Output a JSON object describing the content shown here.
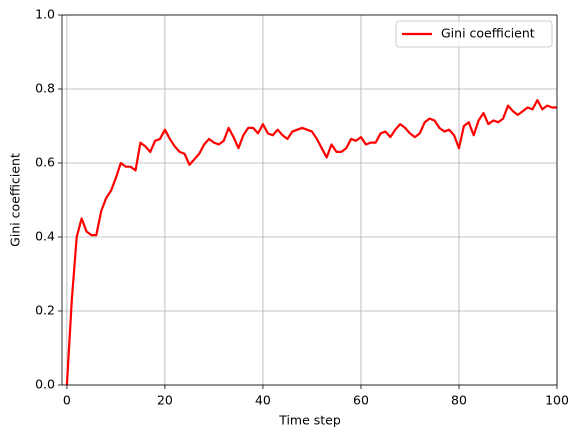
{
  "chart_data": {
    "type": "line",
    "xlabel": "Time step",
    "ylabel": "Gini coefficient",
    "x": [
      0,
      1,
      2,
      3,
      4,
      5,
      6,
      7,
      8,
      9,
      10,
      11,
      12,
      13,
      14,
      15,
      16,
      17,
      18,
      19,
      20,
      21,
      22,
      23,
      24,
      25,
      26,
      27,
      28,
      29,
      30,
      31,
      32,
      33,
      34,
      35,
      36,
      37,
      38,
      39,
      40,
      41,
      42,
      43,
      44,
      45,
      46,
      47,
      48,
      49,
      50,
      51,
      52,
      53,
      54,
      55,
      56,
      57,
      58,
      59,
      60,
      61,
      62,
      63,
      64,
      65,
      66,
      67,
      68,
      69,
      70,
      71,
      72,
      73,
      74,
      75,
      76,
      77,
      78,
      79,
      80,
      81,
      82,
      83,
      84,
      85,
      86,
      87,
      88,
      89,
      90,
      91,
      92,
      93,
      94,
      95,
      96,
      97,
      98,
      99,
      100
    ],
    "series": [
      {
        "name": "Gini coefficient",
        "color": "#ff0000",
        "values": [
          0.0,
          0.23,
          0.4,
          0.45,
          0.415,
          0.405,
          0.405,
          0.47,
          0.505,
          0.525,
          0.56,
          0.6,
          0.59,
          0.59,
          0.58,
          0.655,
          0.645,
          0.63,
          0.66,
          0.665,
          0.69,
          0.665,
          0.645,
          0.63,
          0.625,
          0.595,
          0.61,
          0.625,
          0.65,
          0.665,
          0.655,
          0.65,
          0.66,
          0.695,
          0.67,
          0.64,
          0.675,
          0.695,
          0.695,
          0.68,
          0.705,
          0.68,
          0.675,
          0.69,
          0.675,
          0.665,
          0.685,
          0.69,
          0.695,
          0.69,
          0.685,
          0.665,
          0.64,
          0.615,
          0.65,
          0.63,
          0.63,
          0.64,
          0.665,
          0.66,
          0.67,
          0.65,
          0.655,
          0.655,
          0.68,
          0.685,
          0.67,
          0.69,
          0.705,
          0.695,
          0.68,
          0.67,
          0.68,
          0.71,
          0.72,
          0.715,
          0.695,
          0.685,
          0.69,
          0.675,
          0.64,
          0.7,
          0.71,
          0.675,
          0.715,
          0.735,
          0.705,
          0.715,
          0.71,
          0.72,
          0.755,
          0.74,
          0.73,
          0.74,
          0.75,
          0.745,
          0.77,
          0.745,
          0.755,
          0.75,
          0.75
        ]
      }
    ],
    "xlim": [
      -1,
      100
    ],
    "xticks": [
      0,
      20,
      40,
      60,
      80,
      100
    ],
    "ylim": [
      0,
      1
    ],
    "yticks": [
      {
        "value": 0,
        "label": "0.0"
      },
      0.2,
      0.4,
      0.6,
      0.8,
      {
        "value": 1,
        "label": "1.0"
      }
    ],
    "grid": true,
    "legend": "upper right"
  }
}
